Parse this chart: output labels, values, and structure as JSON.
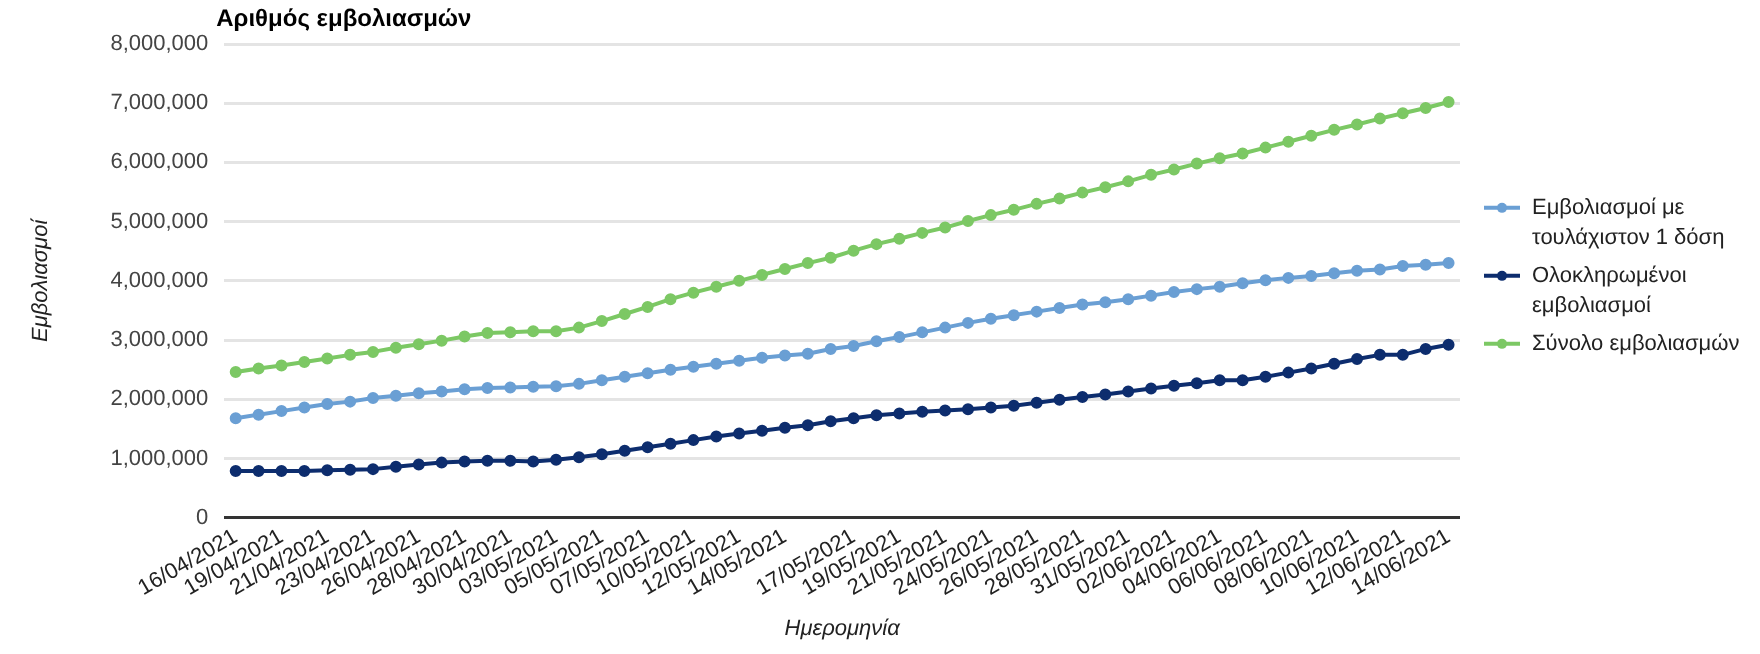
{
  "chart_data": {
    "type": "line",
    "title": "Αριθμός εμβολιασμών",
    "xlabel": "Ημερομηνία",
    "ylabel": "Εμβολιασμοί",
    "categories": [
      "16/04/2021",
      null,
      "19/04/2021",
      null,
      "21/04/2021",
      null,
      "23/04/2021",
      null,
      "26/04/2021",
      null,
      "28/04/2021",
      null,
      "30/04/2021",
      null,
      "03/05/2021",
      null,
      "05/05/2021",
      null,
      "07/05/2021",
      null,
      "10/05/2021",
      null,
      "12/05/2021",
      null,
      "14/05/2021",
      null,
      null,
      "17/05/2021",
      null,
      "19/05/2021",
      null,
      "21/05/2021",
      null,
      "24/05/2021",
      null,
      "26/05/2021",
      null,
      "28/05/2021",
      null,
      "31/05/2021",
      null,
      "02/06/2021",
      null,
      "04/06/2021",
      null,
      "06/06/2021",
      null,
      "08/06/2021",
      null,
      "10/06/2021",
      null,
      "12/06/2021",
      null,
      "14/06/2021"
    ],
    "series": [
      {
        "name": "Εμβολιασμοί με τουλάχιστον 1 δόση",
        "color": "#6a9fd4",
        "values": [
          1680000,
          1740000,
          1800000,
          1860000,
          1920000,
          1960000,
          2020000,
          2060000,
          2100000,
          2130000,
          2170000,
          2190000,
          2200000,
          2210000,
          2220000,
          2260000,
          2320000,
          2380000,
          2440000,
          2500000,
          2550000,
          2600000,
          2650000,
          2700000,
          2740000,
          2770000,
          2850000,
          2900000,
          2980000,
          3050000,
          3130000,
          3210000,
          3290000,
          3360000,
          3420000,
          3480000,
          3540000,
          3600000,
          3640000,
          3690000,
          3750000,
          3810000,
          3860000,
          3900000,
          3960000,
          4010000,
          4050000,
          4080000,
          4130000,
          4170000,
          4190000,
          4250000,
          4270000,
          4300000
        ]
      },
      {
        "name": "Ολοκληρωμένοι εμβολιασμοί",
        "color": "#0d2d6e",
        "values": [
          790000,
          790000,
          790000,
          790000,
          800000,
          810000,
          820000,
          860000,
          900000,
          930000,
          950000,
          960000,
          960000,
          950000,
          980000,
          1020000,
          1070000,
          1130000,
          1190000,
          1250000,
          1310000,
          1370000,
          1420000,
          1470000,
          1520000,
          1560000,
          1630000,
          1680000,
          1730000,
          1760000,
          1790000,
          1810000,
          1830000,
          1860000,
          1890000,
          1940000,
          1990000,
          2040000,
          2080000,
          2130000,
          2180000,
          2230000,
          2270000,
          2320000,
          2320000,
          2380000,
          2450000,
          2520000,
          2600000,
          2680000,
          2750000,
          2750000,
          2850000,
          2920000
        ]
      },
      {
        "name": "Σύνολο εμβολιασμών",
        "color": "#7cc864",
        "values": [
          2460000,
          2520000,
          2570000,
          2630000,
          2690000,
          2750000,
          2800000,
          2870000,
          2930000,
          2990000,
          3060000,
          3120000,
          3130000,
          3150000,
          3150000,
          3210000,
          3320000,
          3440000,
          3560000,
          3690000,
          3800000,
          3900000,
          4000000,
          4100000,
          4200000,
          4300000,
          4390000,
          4510000,
          4620000,
          4710000,
          4810000,
          4900000,
          5010000,
          5110000,
          5200000,
          5300000,
          5390000,
          5490000,
          5580000,
          5680000,
          5790000,
          5880000,
          5980000,
          6070000,
          6150000,
          6250000,
          6350000,
          6450000,
          6550000,
          6640000,
          6740000,
          6830000,
          6920000,
          7020000
        ]
      }
    ],
    "ylim": [
      0,
      8000000
    ],
    "yticks": [
      0,
      {
        "value": 1000000,
        "label": "1,000,000"
      },
      {
        "value": 2000000,
        "label": "2,000,000"
      },
      {
        "value": 3000000,
        "label": "3,000,000"
      },
      {
        "value": 4000000,
        "label": "4,000,000"
      },
      {
        "value": 5000000,
        "label": "5,000,000"
      },
      {
        "value": 6000000,
        "label": "6,000,000"
      },
      {
        "value": 7000000,
        "label": "7,000,000"
      },
      {
        "value": 8000000,
        "label": "8,000,000"
      }
    ],
    "grid": "y",
    "legend": "right",
    "marker": "circle",
    "line_style": "solid"
  }
}
